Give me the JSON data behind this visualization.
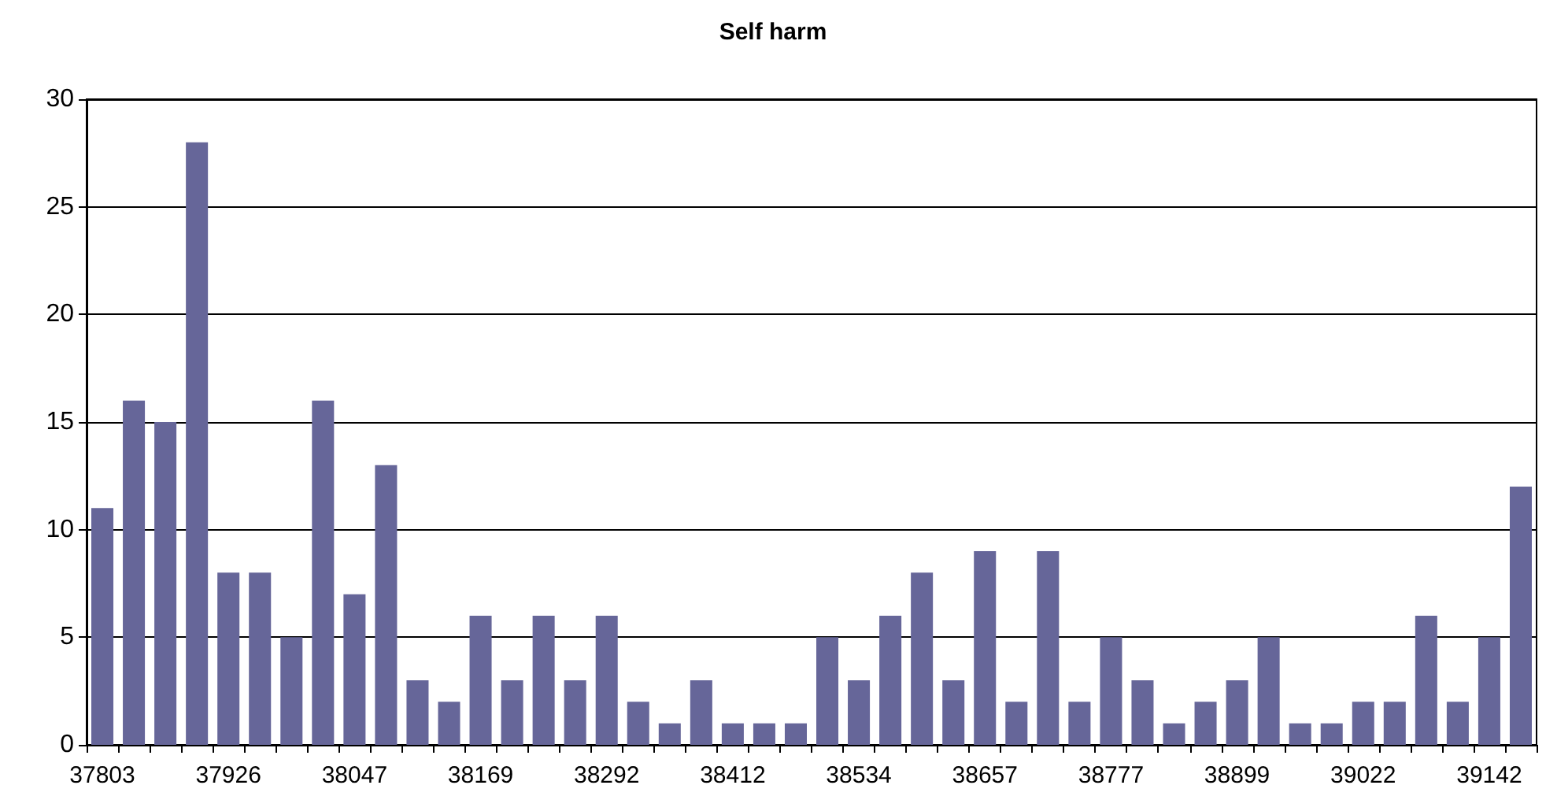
{
  "chart_data": {
    "type": "bar",
    "title": "Self harm",
    "categories": [
      "37803",
      null,
      null,
      null,
      "37926",
      null,
      null,
      null,
      "38047",
      null,
      null,
      null,
      "38169",
      null,
      null,
      null,
      "38292",
      null,
      null,
      null,
      "38412",
      null,
      null,
      null,
      "38534",
      null,
      null,
      null,
      "38657",
      null,
      null,
      null,
      "38777",
      null,
      null,
      null,
      "38899",
      null,
      null,
      null,
      "39022",
      null,
      null,
      null,
      "39142",
      null
    ],
    "values": [
      11,
      16,
      15,
      28,
      8,
      8,
      5,
      16,
      7,
      13,
      3,
      2,
      6,
      3,
      6,
      3,
      6,
      2,
      1,
      3,
      1,
      1,
      1,
      5,
      3,
      6,
      8,
      3,
      9,
      2,
      9,
      2,
      5,
      3,
      1,
      2,
      3,
      5,
      1,
      1,
      2,
      2,
      6,
      2,
      5,
      12
    ],
    "color": "#666699",
    "ylim": [
      0,
      30
    ],
    "yticks": [
      0,
      5,
      10,
      15,
      20,
      25,
      30
    ],
    "grid": "y"
  }
}
